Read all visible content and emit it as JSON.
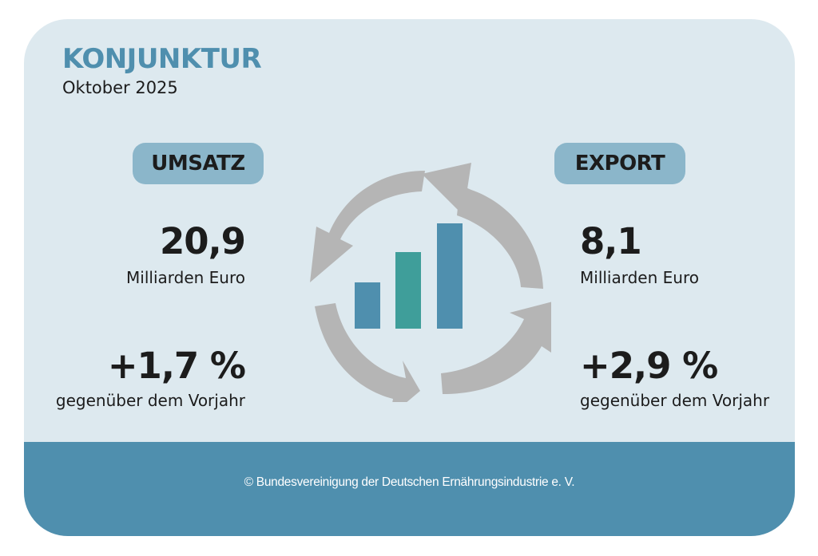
{
  "header": {
    "title": "KONJUNKTUR",
    "subtitle": "Oktober 2025"
  },
  "umsatz": {
    "label": "UMSATZ",
    "value": "20,9",
    "unit": "Milliarden Euro",
    "change": "+1,7 %",
    "change_label": "gegenüber dem Vorjahr"
  },
  "export": {
    "label": "EXPORT",
    "value": "8,1",
    "unit": "Milliarden Euro",
    "change": "+2,9 %",
    "change_label": "gegenüber dem Vorjahr"
  },
  "icon": {
    "name": "cycle-bar-chart-icon",
    "arrow_color": "#b5b5b5",
    "bar_colors": [
      "#4f8fae",
      "#3f9e9a",
      "#4f8fae"
    ]
  },
  "footer": {
    "copyright": "© Bundesvereinigung der Deutschen Ernährungsindustrie e. V."
  },
  "colors": {
    "card_bg": "#dde9ef",
    "accent": "#4f8fae",
    "pill_bg": "#8bb6ca"
  }
}
